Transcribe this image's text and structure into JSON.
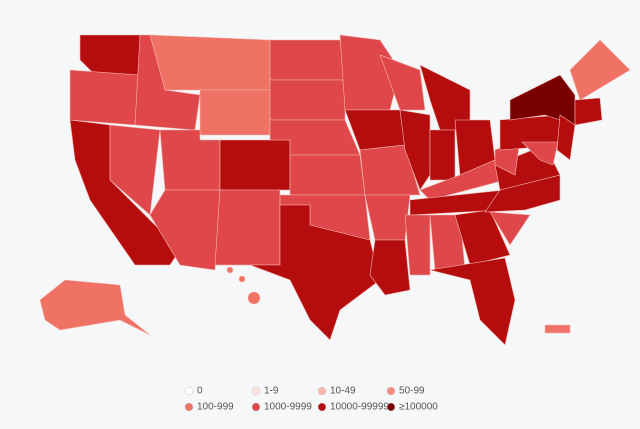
{
  "legend": {
    "items": [
      {
        "label": "0",
        "color": "#ffffff"
      },
      {
        "label": "1-9",
        "color": "#fde3df"
      },
      {
        "label": "10-49",
        "color": "#f9b8ad"
      },
      {
        "label": "50-99",
        "color": "#f48c7e"
      },
      {
        "label": "100-999",
        "color": "#ef7265"
      },
      {
        "label": "1000-9999",
        "color": "#e0474a"
      },
      {
        "label": "10000-99999",
        "color": "#b50d0d"
      },
      {
        "label": "≥100000",
        "color": "#7a0000"
      }
    ]
  }
}
